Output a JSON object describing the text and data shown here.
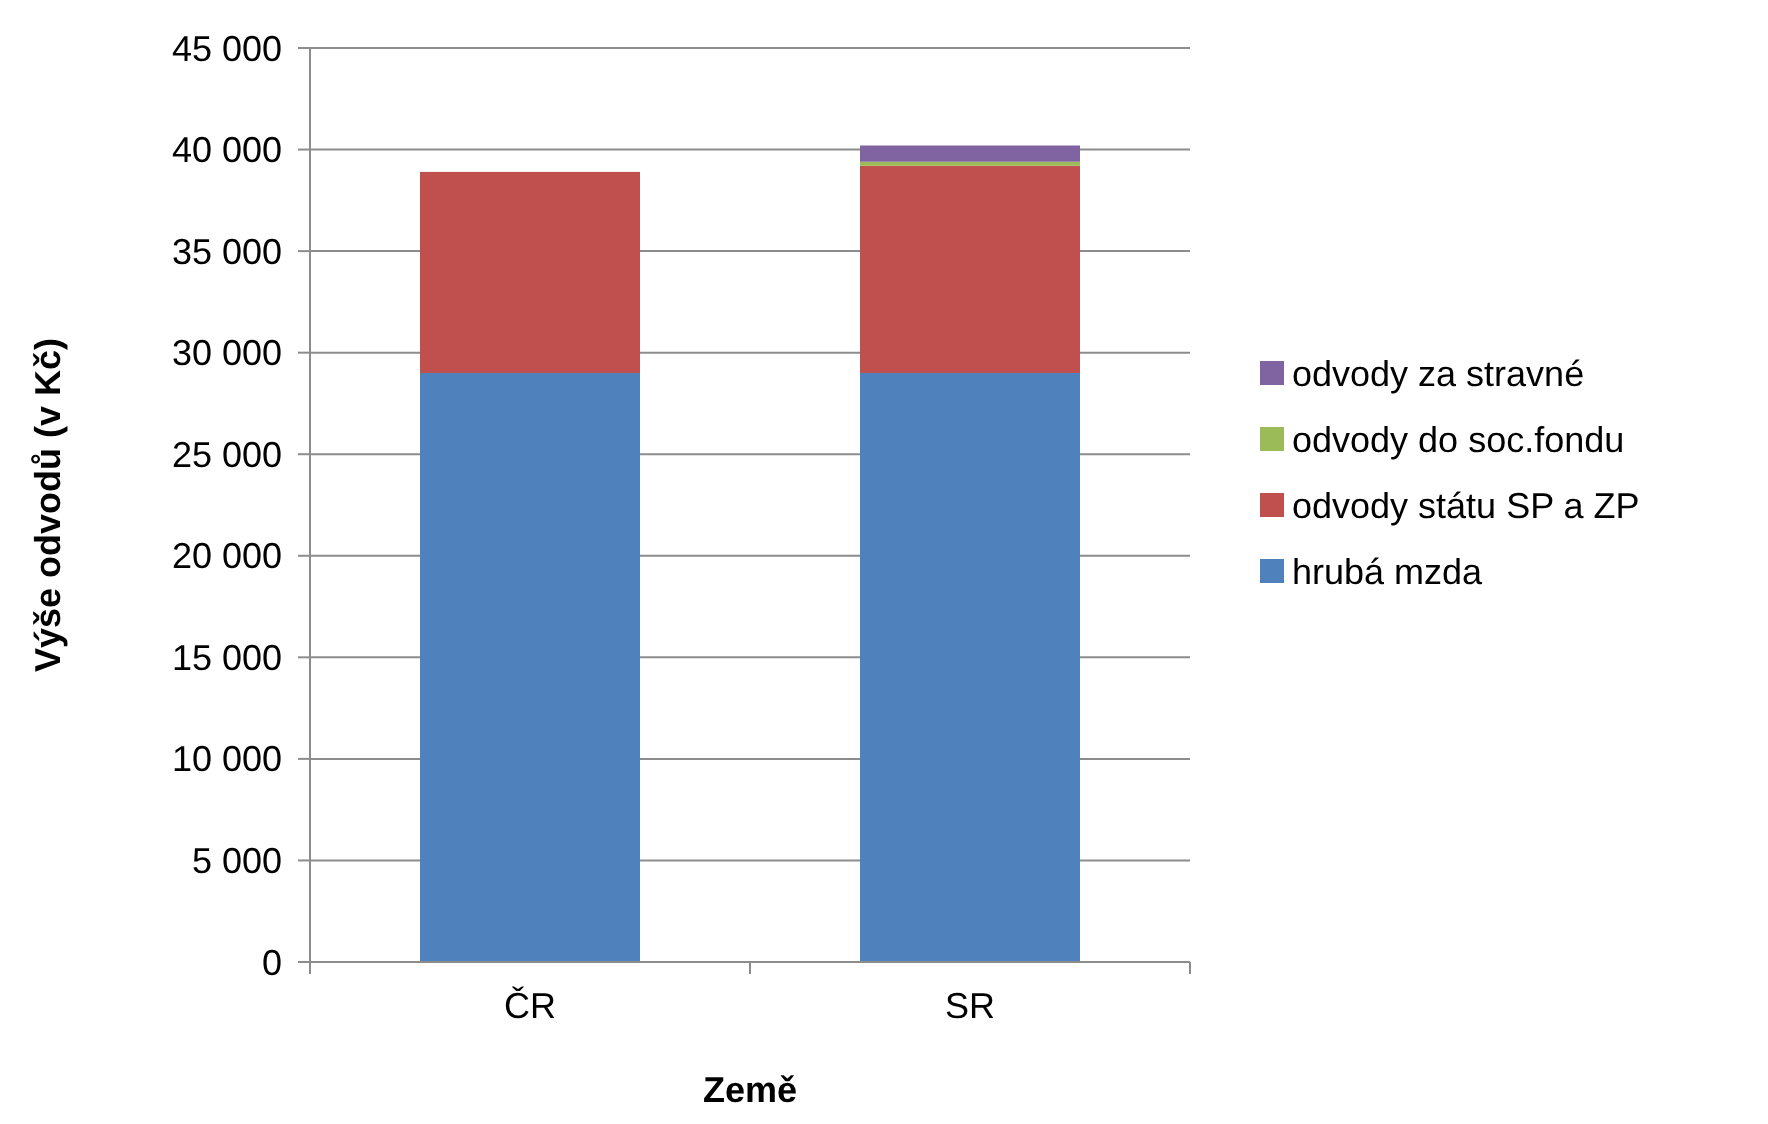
{
  "chart_data": {
    "type": "bar",
    "stacked": true,
    "xlabel": "Země",
    "ylabel": "Výše odvodů (v Kč)",
    "categories": [
      "ČR",
      "SR"
    ],
    "series": [
      {
        "name": "hrubá mzda",
        "color": "#4f81bd",
        "values": [
          29000,
          29000
        ]
      },
      {
        "name": "odvody státu SP a ZP",
        "color": "#c0504d",
        "values": [
          9900,
          10200
        ]
      },
      {
        "name": "odvody do soc.fondu",
        "color": "#9bbb59",
        "values": [
          0,
          200
        ]
      },
      {
        "name": "odvody za stravné",
        "color": "#8064a2",
        "values": [
          0,
          800
        ]
      }
    ],
    "ylim": [
      0,
      45000
    ],
    "yticks": [
      {
        "value": 0,
        "label": "0"
      },
      {
        "value": 5000,
        "label": "5 000"
      },
      {
        "value": 10000,
        "label": "10 000"
      },
      {
        "value": 15000,
        "label": "15 000"
      },
      {
        "value": 20000,
        "label": "20 000"
      },
      {
        "value": 25000,
        "label": "25 000"
      },
      {
        "value": 30000,
        "label": "30 000"
      },
      {
        "value": 35000,
        "label": "35 000"
      },
      {
        "value": 40000,
        "label": "40 000"
      },
      {
        "value": 45000,
        "label": "45 000"
      }
    ],
    "grid": "y",
    "legend": "right"
  }
}
